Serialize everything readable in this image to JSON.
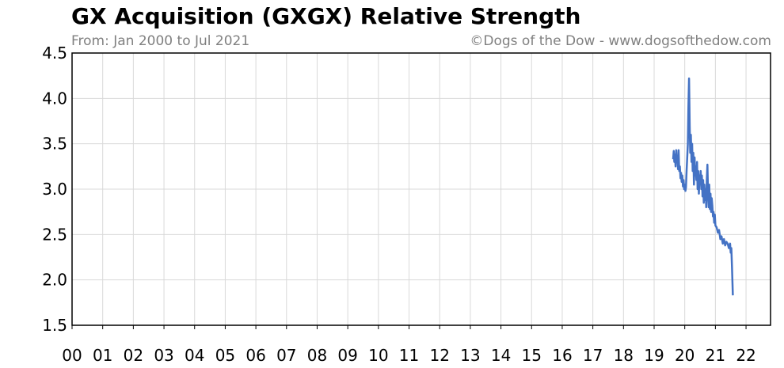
{
  "chart_data": {
    "type": "line",
    "title": "GX Acquisition (GXGX) Relative Strength",
    "subtitle_left": "From: Jan 2000 to Jul 2021",
    "subtitle_right": "©Dogs of the Dow - www.dogsofthedow.com",
    "xlabel": "",
    "ylabel": "",
    "x_tick_labels": [
      "00",
      "01",
      "02",
      "03",
      "04",
      "05",
      "06",
      "07",
      "08",
      "09",
      "10",
      "11",
      "12",
      "13",
      "14",
      "15",
      "16",
      "17",
      "18",
      "19",
      "20",
      "21",
      "22"
    ],
    "y_tick_labels": [
      "1.5",
      "2.0",
      "2.5",
      "3.0",
      "3.5",
      "4.0",
      "4.5"
    ],
    "xlim": [
      2000,
      2022.8
    ],
    "ylim": [
      1.5,
      4.5
    ],
    "grid": true,
    "line_color": "#4472c4",
    "series": [
      {
        "x": [
          2019.62,
          2019.64,
          2019.66,
          2019.68,
          2019.7,
          2019.72,
          2019.74,
          2019.76,
          2019.78,
          2019.8,
          2019.82,
          2019.84,
          2019.86,
          2019.88,
          2019.9,
          2019.92,
          2019.94,
          2019.96,
          2019.98,
          2020.0,
          2020.02,
          2020.04,
          2020.06,
          2020.08,
          2020.1,
          2020.12,
          2020.14,
          2020.16,
          2020.18,
          2020.2,
          2020.22,
          2020.24,
          2020.26,
          2020.28,
          2020.3,
          2020.32,
          2020.34,
          2020.36,
          2020.38,
          2020.4,
          2020.42,
          2020.44,
          2020.46,
          2020.48,
          2020.5,
          2020.52,
          2020.54,
          2020.56,
          2020.58,
          2020.6,
          2020.62,
          2020.64,
          2020.66,
          2020.68,
          2020.7,
          2020.72,
          2020.74,
          2020.76,
          2020.78,
          2020.8,
          2020.82,
          2020.84,
          2020.86,
          2020.88,
          2020.9,
          2020.92,
          2020.94,
          2020.96,
          2020.98,
          2021.0,
          2021.04,
          2021.08,
          2021.12,
          2021.16,
          2021.2,
          2021.24,
          2021.28,
          2021.32,
          2021.36,
          2021.4,
          2021.44,
          2021.48,
          2021.5,
          2021.52,
          2021.54,
          2021.56,
          2021.57
        ],
        "y": [
          3.33,
          3.42,
          3.3,
          3.38,
          3.25,
          3.43,
          3.3,
          3.35,
          3.22,
          3.43,
          3.2,
          3.25,
          3.12,
          3.18,
          3.08,
          3.15,
          3.03,
          3.1,
          3.0,
          3.05,
          2.98,
          3.02,
          3.2,
          3.35,
          3.5,
          3.9,
          4.22,
          3.7,
          3.4,
          3.6,
          3.3,
          3.5,
          3.2,
          3.4,
          3.05,
          3.35,
          3.15,
          3.25,
          3.1,
          3.3,
          3.0,
          3.2,
          2.95,
          3.15,
          3.1,
          3.2,
          3.0,
          3.15,
          2.92,
          3.1,
          2.85,
          3.05,
          2.88,
          3.0,
          2.8,
          3.1,
          3.27,
          2.95,
          2.8,
          3.05,
          2.78,
          2.95,
          2.75,
          2.9,
          2.82,
          2.7,
          2.75,
          2.63,
          2.72,
          2.6,
          2.58,
          2.52,
          2.55,
          2.45,
          2.48,
          2.4,
          2.45,
          2.38,
          2.42,
          2.4,
          2.35,
          2.4,
          2.3,
          2.35,
          2.15,
          1.95,
          1.83
        ]
      }
    ]
  }
}
